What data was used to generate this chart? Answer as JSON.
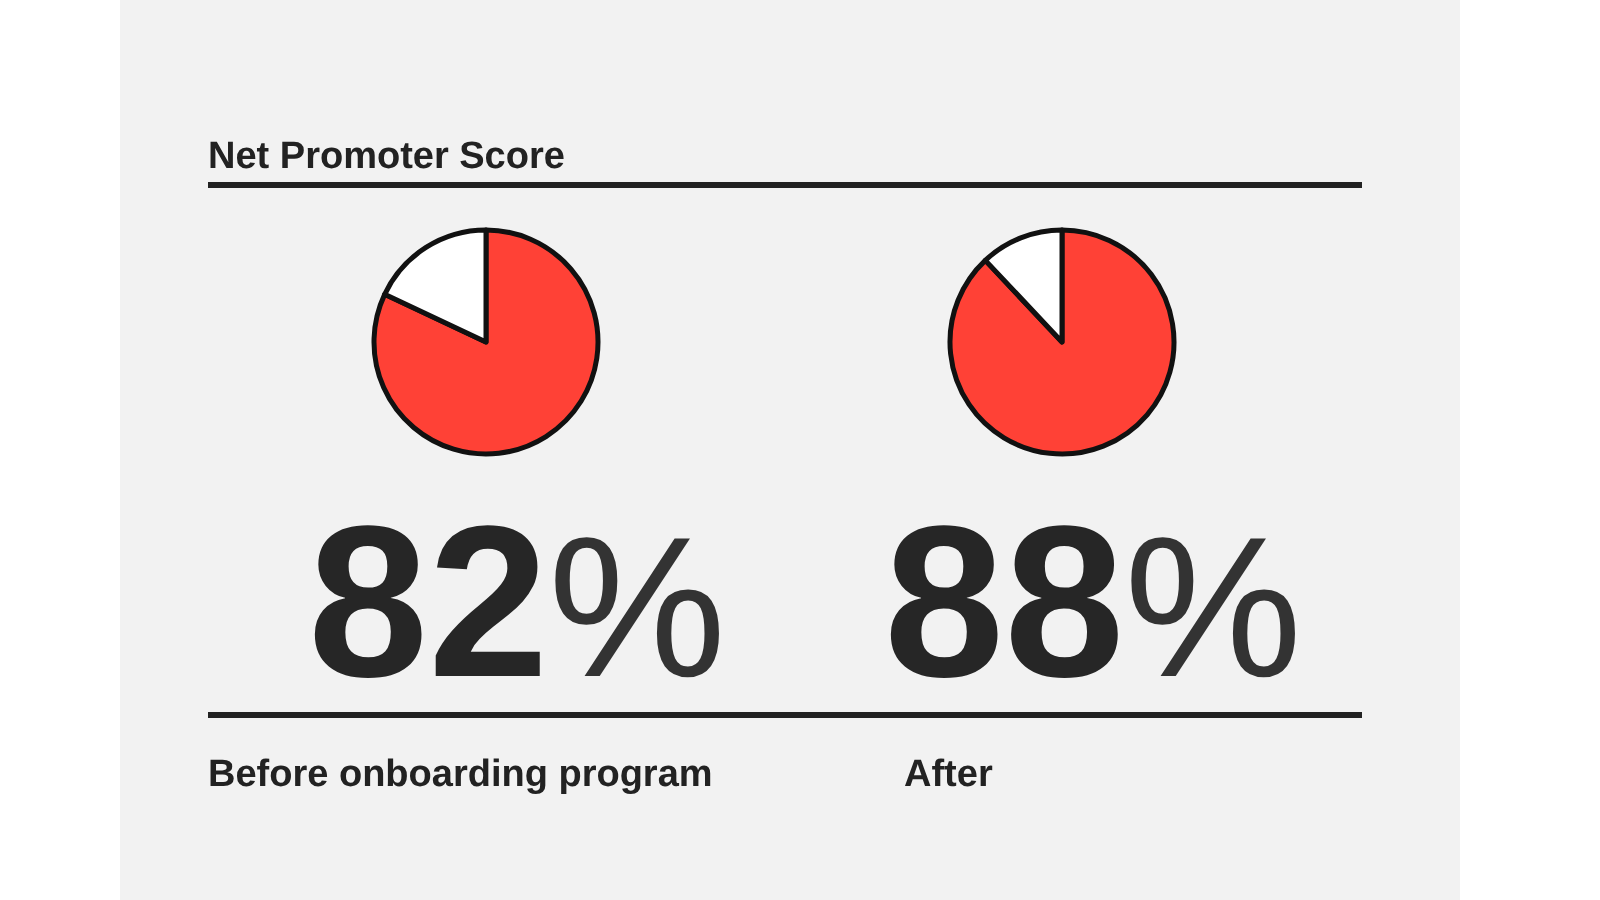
{
  "chart_data": [
    {
      "type": "pie",
      "title": "Net Promoter Score",
      "xlabel": "Before onboarding program",
      "categories": [
        null,
        null
      ],
      "values": [
        82,
        18
      ],
      "colors": [
        "#ff4136",
        "#ffffff"
      ],
      "value_labels": [
        "82%",
        null
      ]
    },
    {
      "type": "pie",
      "xlabel": "After",
      "categories": [
        null,
        null
      ],
      "values": [
        88,
        12
      ],
      "colors": [
        "#ff4136",
        "#ffffff"
      ],
      "value_labels": [
        "88%",
        null
      ]
    }
  ]
}
